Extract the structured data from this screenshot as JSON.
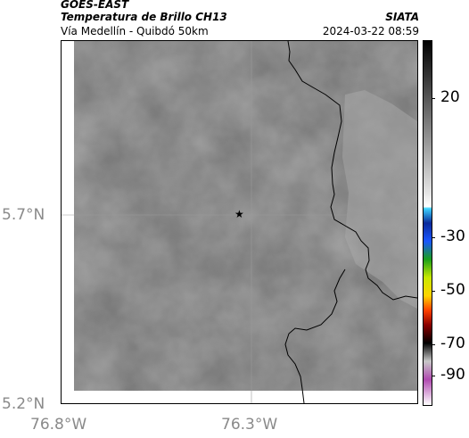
{
  "header": {
    "satellite": "GOES-EAST",
    "product": "Temperatura de Brillo CH13",
    "region": "Vía Medellín - Quibdó 50km",
    "source": "SIATA",
    "timestamp": "2024-03-22 08:59"
  },
  "axes": {
    "latitude_labels": [
      "5.7°N",
      "5.2°N"
    ],
    "longitude_labels": [
      "76.8°W",
      "76.3°W"
    ]
  },
  "colorbar": {
    "tick_labels": [
      "20",
      "-30",
      "-50",
      "-70",
      "-90"
    ]
  },
  "map": {
    "marker": "star-icon",
    "colors": {
      "field_base": "#7b7b7b",
      "field_light": "#a9a9a9",
      "coastline": "#000000",
      "marker": "#000000"
    }
  }
}
